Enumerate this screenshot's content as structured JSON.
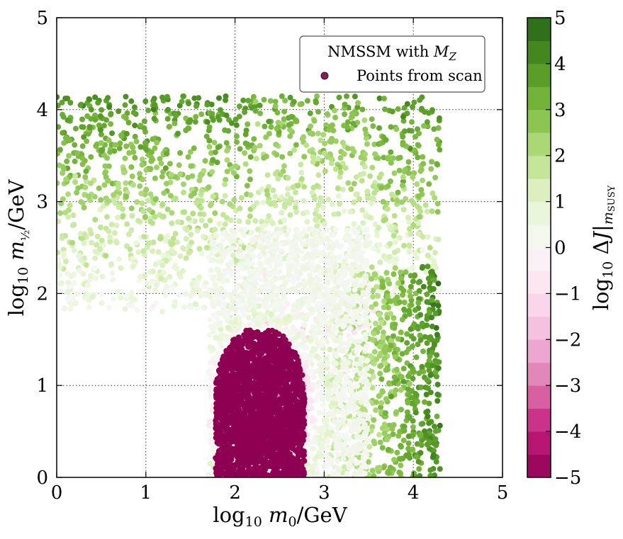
{
  "chart_data": {
    "type": "scatter",
    "title": "",
    "xlabel": "log10 m0/GeV",
    "ylabel": "log10 m1/2/GeV",
    "xlim": [
      0,
      5
    ],
    "ylim": [
      0,
      5
    ],
    "xticks": [
      "0",
      "1",
      "2",
      "3",
      "4",
      "5"
    ],
    "yticks": [
      "0",
      "1",
      "2",
      "3",
      "4",
      "5"
    ],
    "grid": true,
    "legend": {
      "position": "top-right",
      "title": "NMSSM with M_Z",
      "entries": [
        "Points from scan"
      ],
      "marker_color": "#8e1952"
    },
    "colorbar": {
      "label": "log10 ΔJ|mSUSY",
      "range": [
        -5,
        5
      ],
      "ticks": [
        "−5",
        "−4",
        "−3",
        "−2",
        "−1",
        "0",
        "1",
        "2",
        "3",
        "4",
        "5"
      ],
      "colors": [
        "#8e0152",
        "#c51b7d",
        "#de77ae",
        "#f1b6da",
        "#fde0ef",
        "#f7f7f7",
        "#e6f5d0",
        "#b8e186",
        "#7fbc41",
        "#4d9221",
        "#276419"
      ]
    },
    "series": [
      {
        "name": "Points from scan",
        "color_variable": "log10 ΔJ|mSUSY",
        "regions": [
          {
            "x_range": [
              1.75,
              2.8
            ],
            "y_range": [
              0.0,
              1.6
            ],
            "color_value": -5
          },
          {
            "x_range": [
              1.7,
              3.6
            ],
            "y_range": [
              0.0,
              2.7
            ],
            "color_value_range": [
              -3,
              1
            ]
          },
          {
            "x_range": [
              0.0,
              4.3
            ],
            "y_range": [
              1.8,
              4.15
            ],
            "color_value_range": [
              0,
              5
            ]
          },
          {
            "x_range": [
              3.0,
              4.3
            ],
            "y_range": [
              0.0,
              4.15
            ],
            "color_value_range": [
              1,
              5
            ]
          }
        ]
      }
    ]
  }
}
